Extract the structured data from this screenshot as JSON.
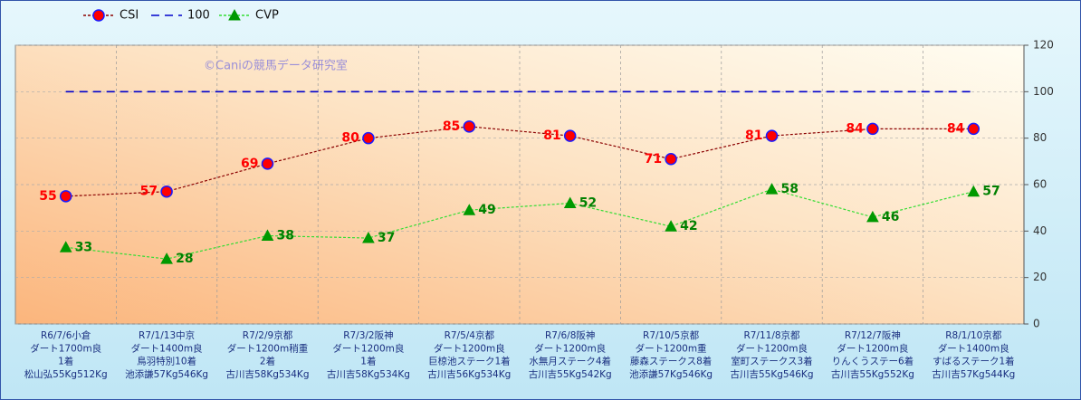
{
  "chart_data": {
    "type": "line",
    "watermark": "©Caniの競馬データ研究室",
    "categories": [
      [
        "R6/7/6小倉",
        "ダート1700m良",
        "1着",
        "松山弘55Kg512Kg"
      ],
      [
        "R7/1/13中京",
        "ダート1400m良",
        "鳥羽特別10着",
        "池添謙57Kg546Kg"
      ],
      [
        "R7/2/9京都",
        "ダート1200m稍重",
        "2着",
        "古川吉58Kg534Kg"
      ],
      [
        "R7/3/2阪神",
        "ダート1200m良",
        "1着",
        "古川吉58Kg534Kg"
      ],
      [
        "R7/5/4京都",
        "ダート1200m良",
        "巨椋池ステーク1着",
        "古川吉56Kg534Kg"
      ],
      [
        "R7/6/8阪神",
        "ダート1200m良",
        "水無月ステーク4着",
        "古川吉55Kg542Kg"
      ],
      [
        "R7/10/5京都",
        "ダート1200m重",
        "藤森ステークス8着",
        "池添謙57Kg546Kg"
      ],
      [
        "R7/11/8京都",
        "ダート1200m良",
        "室町ステークス3着",
        "古川吉55Kg546Kg"
      ],
      [
        "R7/12/7阪神",
        "ダート1200m良",
        "りんくうステー6着",
        "古川吉55Kg552Kg"
      ],
      [
        "R8/1/10京都",
        "ダート1400m良",
        "すばるステーク1着",
        "古川吉57Kg544Kg"
      ]
    ],
    "series": [
      {
        "name": "CSI",
        "color": "#8b0000",
        "marker": "circle",
        "marker_color": "#ff0000",
        "marker_edge": "#1a1aff",
        "label_color": "#ff0000",
        "data_labels": true,
        "values": [
          55,
          57,
          69,
          80,
          85,
          81,
          71,
          81,
          84,
          84
        ]
      },
      {
        "name": "100",
        "color": "#0000cc",
        "marker": null,
        "data_labels": false,
        "values": [
          100,
          100,
          100,
          100,
          100,
          100,
          100,
          100,
          100,
          100
        ]
      },
      {
        "name": "CVP",
        "color": "#33dd33",
        "marker": "triangle",
        "marker_color": "#009900",
        "marker_edge": "#009900",
        "label_color": "#008000",
        "data_labels": true,
        "values": [
          33,
          28,
          38,
          37,
          49,
          52,
          42,
          58,
          46,
          57
        ]
      }
    ],
    "ylim": [
      0,
      120
    ],
    "yticks": [
      0,
      20,
      40,
      60,
      80,
      100,
      120
    ],
    "grid": true,
    "legend": "top-left"
  }
}
